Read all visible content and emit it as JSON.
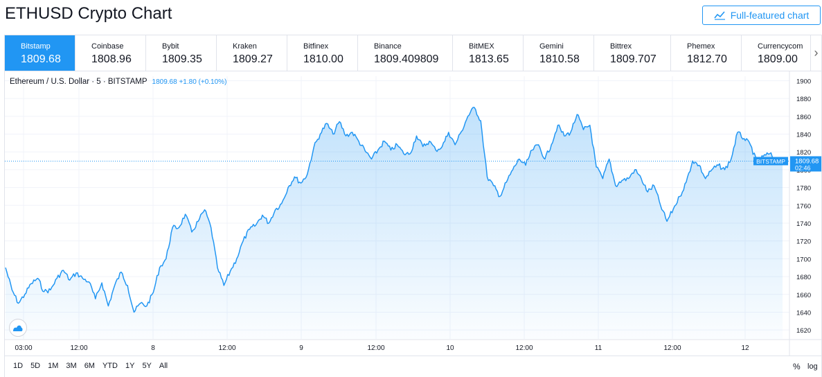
{
  "page": {
    "title": "ETHUSD Crypto Chart",
    "full_button": "Full-featured chart",
    "tab_arrow": "›"
  },
  "colors": {
    "accent": "#2196f3",
    "line": "#2196f3",
    "grid": "#f0f3fa",
    "text": "#131722"
  },
  "exchanges": [
    {
      "name": "Bitstamp",
      "price": "1809.68",
      "active": true
    },
    {
      "name": "Coinbase",
      "price": "1808.96"
    },
    {
      "name": "Bybit",
      "price": "1809.35"
    },
    {
      "name": "Kraken",
      "price": "1809.27"
    },
    {
      "name": "Bitfinex",
      "price": "1810.00"
    },
    {
      "name": "Binance",
      "price": "1809.409809"
    },
    {
      "name": "BitMEX",
      "price": "1813.65"
    },
    {
      "name": "Gemini",
      "price": "1810.58"
    },
    {
      "name": "Bittrex",
      "price": "1809.707"
    },
    {
      "name": "Phemex",
      "price": "1812.70"
    },
    {
      "name": "Currencycom",
      "price": "1809.00"
    }
  ],
  "legend": {
    "symbol": "Ethereum / U.S. Dollar · 5 · BITSTAMP",
    "change": "1809.68  +1.80 (+0.10%)"
  },
  "price_tag": {
    "label": "BITSTAMP",
    "price": "1809.68",
    "countdown": "02:46"
  },
  "ranges": [
    "1D",
    "5D",
    "1M",
    "3M",
    "6M",
    "YTD",
    "1Y",
    "5Y",
    "All"
  ],
  "scale_options": {
    "percent": "%",
    "log": "log"
  },
  "chart_data": {
    "type": "area",
    "title": "Ethereum / U.S. Dollar · 5 · BITSTAMP",
    "ylim": [
      1610,
      1905
    ],
    "yticks": [
      1620,
      1640,
      1660,
      1680,
      1700,
      1720,
      1740,
      1760,
      1780,
      1800,
      1820,
      1840,
      1860,
      1880,
      1900
    ],
    "xticks": [
      "03:00",
      "12:00",
      "8",
      "12:00",
      "9",
      "12:00",
      "10",
      "12:00",
      "11",
      "12:00",
      "12"
    ],
    "grid": true,
    "last_price": 1809.68,
    "series": [
      {
        "values": [
          1690,
          1665,
          1650,
          1660,
          1672,
          1678,
          1663,
          1665,
          1678,
          1687,
          1676,
          1684,
          1678,
          1674,
          1655,
          1673,
          1647,
          1670,
          1685,
          1670,
          1640,
          1650,
          1647,
          1662,
          1690,
          1700,
          1735,
          1735,
          1750,
          1730,
          1742,
          1755,
          1735,
          1690,
          1670,
          1686,
          1700,
          1720,
          1733,
          1738,
          1749,
          1740,
          1755,
          1762,
          1780,
          1792,
          1785,
          1795,
          1825,
          1840,
          1852,
          1840,
          1854,
          1838,
          1842,
          1832,
          1821,
          1812,
          1822,
          1832,
          1822,
          1828,
          1818,
          1818,
          1838,
          1826,
          1832,
          1822,
          1826,
          1842,
          1828,
          1843,
          1860,
          1870,
          1855,
          1792,
          1782,
          1770,
          1786,
          1800,
          1812,
          1805,
          1822,
          1828,
          1812,
          1828,
          1850,
          1838,
          1842,
          1862,
          1845,
          1850,
          1803,
          1790,
          1812,
          1782,
          1788,
          1790,
          1800,
          1790,
          1775,
          1782,
          1760,
          1742,
          1756,
          1770,
          1786,
          1810,
          1805,
          1790,
          1800,
          1805,
          1800,
          1812,
          1842,
          1835,
          1828,
          1808,
          1815,
          1818,
          1810,
          1809.68
        ]
      }
    ]
  }
}
